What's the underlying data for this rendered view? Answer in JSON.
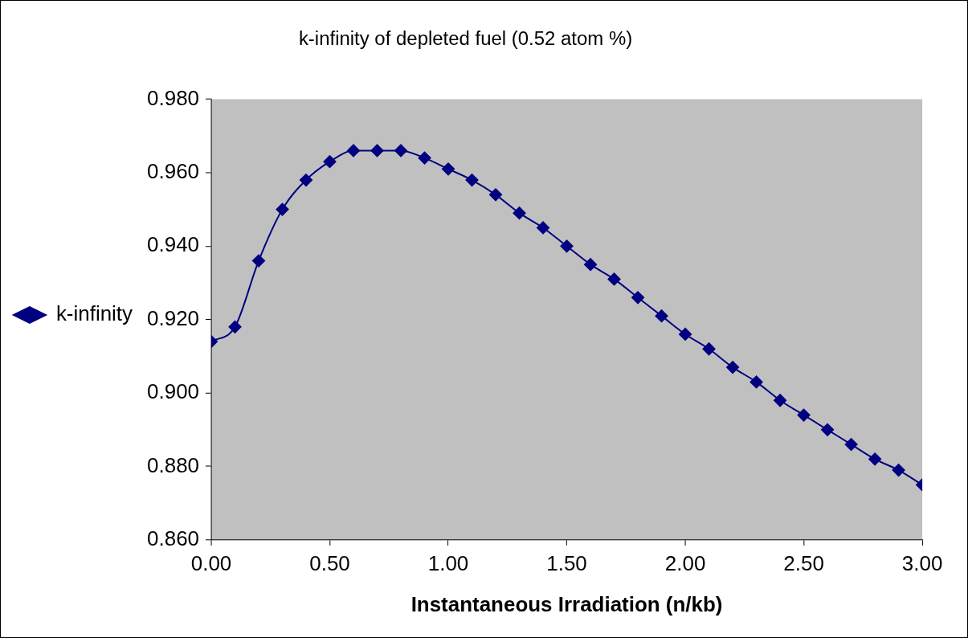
{
  "chart_data": {
    "type": "line",
    "title": "k-infinity of depleted fuel (0.52 atom %)",
    "xlabel": "Instantaneous Irradiation (n/kb)",
    "x": [
      0,
      0.1,
      0.2,
      0.3,
      0.4,
      0.5,
      0.6,
      0.7,
      0.8,
      0.9,
      1.0,
      1.1,
      1.2,
      1.3,
      1.4,
      1.5,
      1.6,
      1.7,
      1.8,
      1.9,
      2.0,
      2.1,
      2.2,
      2.3,
      2.4,
      2.5,
      2.6,
      2.7,
      2.8,
      2.9,
      3.0
    ],
    "series": [
      {
        "name": "k-infinity",
        "color": "#000080",
        "values": [
          0.914,
          0.918,
          0.936,
          0.95,
          0.958,
          0.963,
          0.966,
          0.966,
          0.966,
          0.964,
          0.961,
          0.958,
          0.954,
          0.949,
          0.945,
          0.94,
          0.935,
          0.931,
          0.926,
          0.921,
          0.916,
          0.912,
          0.907,
          0.903,
          0.898,
          0.894,
          0.89,
          0.886,
          0.882,
          0.879,
          0.875
        ]
      }
    ],
    "xlim": [
      0,
      3
    ],
    "xticks": [
      {
        "value": 0,
        "label": "0.00"
      },
      {
        "value": 0.5,
        "label": "0.50"
      },
      {
        "value": 1,
        "label": "1.00"
      },
      {
        "value": 1.5,
        "label": "1.50"
      },
      {
        "value": 2,
        "label": "2.00"
      },
      {
        "value": 2.5,
        "label": "2.50"
      },
      {
        "value": 3,
        "label": "3.00"
      }
    ],
    "ylim": [
      0.86,
      0.98
    ],
    "yticks": [
      {
        "value": 0.86,
        "label": "0.860"
      },
      {
        "value": 0.88,
        "label": "0.880"
      },
      {
        "value": 0.9,
        "label": "0.900"
      },
      {
        "value": 0.92,
        "label": "0.920"
      },
      {
        "value": 0.94,
        "label": "0.940"
      },
      {
        "value": 0.96,
        "label": "0.960"
      },
      {
        "value": 0.98,
        "label": "0.980"
      }
    ],
    "grid": false,
    "legend": "left",
    "marker": "diamond",
    "line_style": "solid"
  }
}
